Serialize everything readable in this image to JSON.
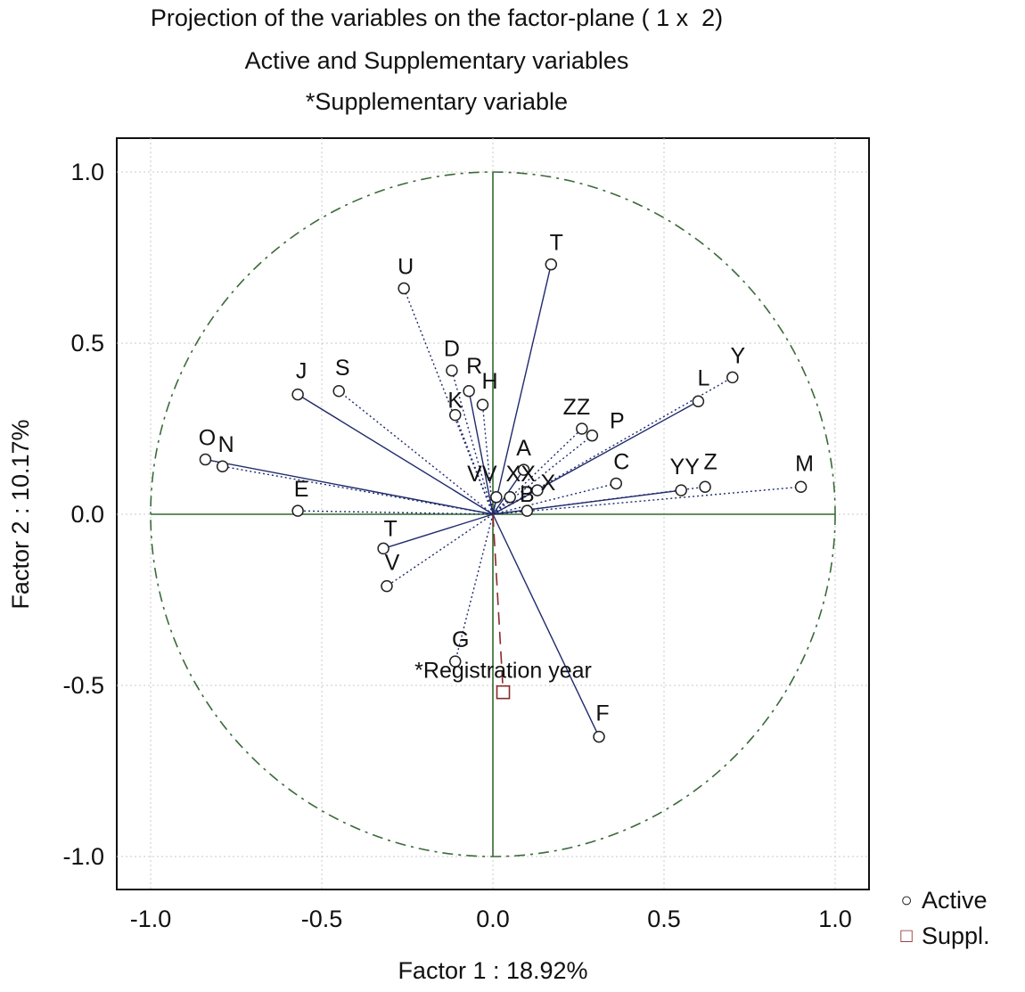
{
  "titles": {
    "line1": "Projection of the variables on the factor-plane ( 1 x  2)",
    "line2": "Active and Supplementary variables",
    "line3": "*Supplementary variable"
  },
  "legend": {
    "active": "Active",
    "suppl": "Suppl."
  },
  "colors": {
    "active": "#1f2a6b",
    "suppl": "#8a2a2a",
    "axis": "#2e6a2e",
    "circle": "#3a6a3a",
    "grid": "#c8c8c8"
  },
  "chart_data": {
    "type": "scatter",
    "xlabel": "Factor 1 : 18.92%",
    "ylabel": "Factor 2 : 10.17%",
    "xlim": [
      -1.1,
      1.1
    ],
    "ylim": [
      -1.1,
      1.1
    ],
    "xticks": [
      "-1.0",
      "-0.5",
      "0.0",
      "0.5",
      "1.0"
    ],
    "yticks": [
      "1.0",
      "0.5",
      "0.0",
      "-0.5",
      "-1.0"
    ],
    "grid": true,
    "unit_circle": true,
    "series": [
      {
        "name": "Active",
        "points": [
          {
            "label": "T",
            "x": 0.17,
            "y": 0.73
          },
          {
            "label": "U",
            "x": -0.26,
            "y": 0.66
          },
          {
            "label": "D",
            "x": -0.12,
            "y": 0.42
          },
          {
            "label": "R",
            "x": -0.07,
            "y": 0.36
          },
          {
            "label": "H",
            "x": -0.03,
            "y": 0.32
          },
          {
            "label": "K",
            "x": -0.11,
            "y": 0.29
          },
          {
            "label": "J",
            "x": -0.57,
            "y": 0.35
          },
          {
            "label": "S",
            "x": -0.45,
            "y": 0.36
          },
          {
            "label": "Y",
            "x": 0.7,
            "y": 0.4
          },
          {
            "label": "L",
            "x": 0.6,
            "y": 0.33
          },
          {
            "label": "ZZ",
            "x": 0.26,
            "y": 0.25
          },
          {
            "label": "P",
            "x": 0.29,
            "y": 0.23
          },
          {
            "label": "A",
            "x": 0.09,
            "y": 0.13
          },
          {
            "label": "X",
            "x": 0.13,
            "y": 0.07
          },
          {
            "label": "C",
            "x": 0.36,
            "y": 0.09
          },
          {
            "label": "YY",
            "x": 0.55,
            "y": 0.07
          },
          {
            "label": "Z",
            "x": 0.62,
            "y": 0.08
          },
          {
            "label": "M",
            "x": 0.9,
            "y": 0.08
          },
          {
            "label": "VV",
            "x": 0.01,
            "y": 0.05
          },
          {
            "label": "XX",
            "x": 0.05,
            "y": 0.05
          },
          {
            "label": "B",
            "x": 0.1,
            "y": 0.01
          },
          {
            "label": "O",
            "x": -0.84,
            "y": 0.16
          },
          {
            "label": "N",
            "x": -0.79,
            "y": 0.14
          },
          {
            "label": "E",
            "x": -0.57,
            "y": 0.01
          },
          {
            "label": "T",
            "x": -0.32,
            "y": -0.1
          },
          {
            "label": "V",
            "x": -0.31,
            "y": -0.21
          },
          {
            "label": "G",
            "x": -0.11,
            "y": -0.43
          },
          {
            "label": "F",
            "x": 0.31,
            "y": -0.65
          }
        ]
      },
      {
        "name": "Suppl.",
        "points": [
          {
            "label": "*Registration year",
            "x": 0.03,
            "y": -0.52
          }
        ]
      }
    ]
  }
}
